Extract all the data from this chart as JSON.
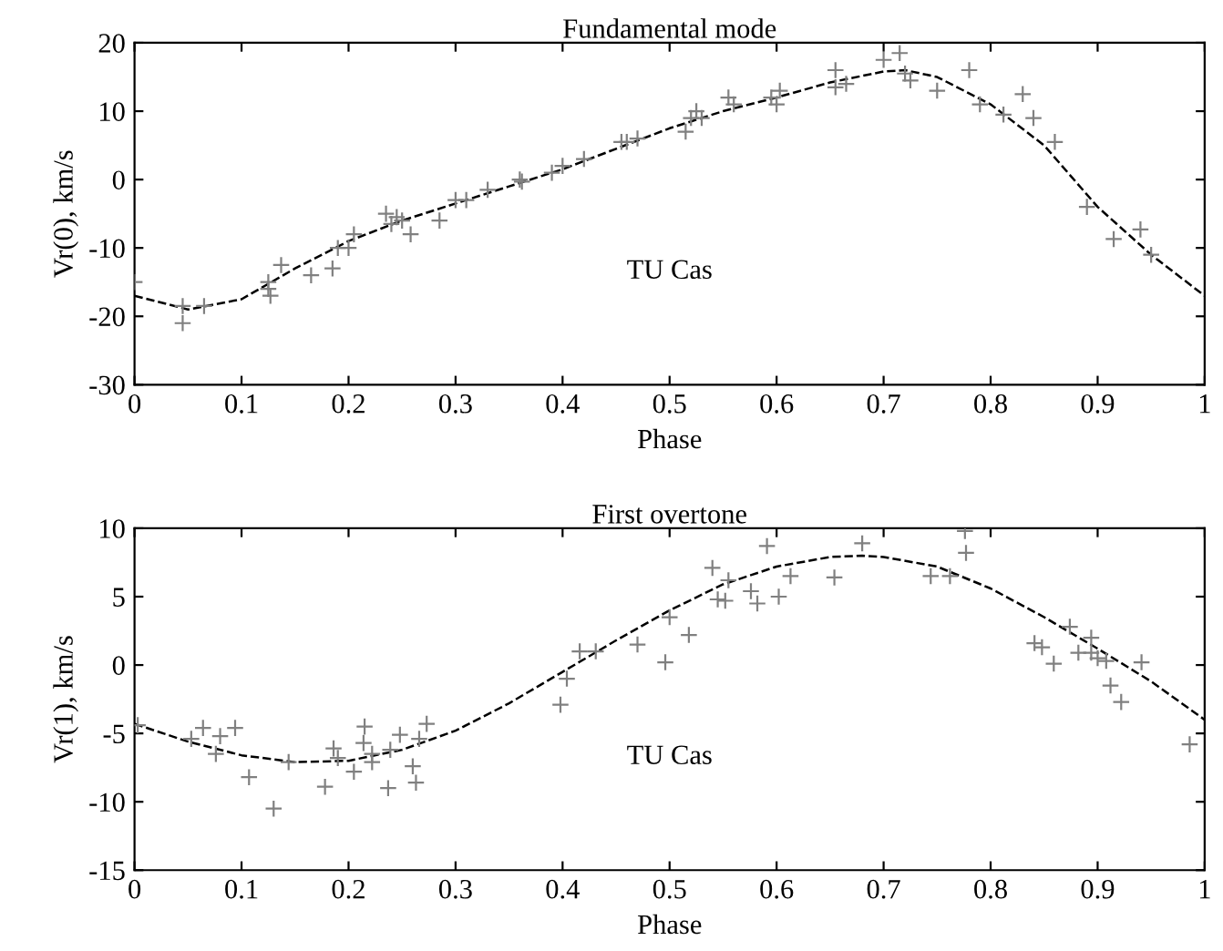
{
  "chart_data": [
    {
      "type": "scatter",
      "title": "Fundamental mode",
      "xlabel": "Phase",
      "ylabel": "Vr(0), km/s",
      "annotations": [
        "TU Cas"
      ],
      "xlim": [
        0,
        1
      ],
      "ylim": [
        -30,
        20
      ],
      "xticks": [
        0,
        0.1,
        0.2,
        0.3,
        0.4,
        0.5,
        0.6,
        0.7,
        0.8,
        0.9,
        1
      ],
      "yticks": [
        -30,
        -20,
        -10,
        0,
        10,
        20
      ],
      "grid": false,
      "legend": false,
      "series": [
        {
          "color": "#808080",
          "marker": "cross",
          "x": [
            0,
            0.045,
            0.045,
            0.065,
            0.125,
            0.125,
            0.127,
            0.137,
            0.165,
            0.185,
            0.19,
            0.2,
            0.205,
            0.235,
            0.24,
            0.245,
            0.25,
            0.258,
            0.285,
            0.3,
            0.31,
            0.33,
            0.36,
            0.362,
            0.39,
            0.4,
            0.42,
            0.455,
            0.46,
            0.47,
            0.515,
            0.52,
            0.525,
            0.53,
            0.555,
            0.56,
            0.595,
            0.6,
            0.603,
            0.655,
            0.655,
            0.665,
            0.7,
            0.715,
            0.72,
            0.725,
            0.75,
            0.78,
            0.79,
            0.812,
            0.83,
            0.84,
            0.86,
            0.89,
            0.915,
            0.94,
            0.95
          ],
          "values": [
            -15,
            -18.5,
            -21,
            -18.5,
            -15,
            -16,
            -17,
            -12.5,
            -14,
            -13,
            -10,
            -10,
            -8,
            -5,
            -6.5,
            -5.5,
            -6,
            -8,
            -6,
            -3,
            -3,
            -1.5,
            0,
            -0.3,
            1,
            2,
            3,
            5.5,
            5.5,
            6,
            7,
            9,
            10,
            9,
            12,
            11,
            12,
            11,
            13,
            16,
            13.5,
            14,
            17.5,
            18.5,
            15.5,
            14.5,
            13,
            16,
            11,
            9.5,
            12.5,
            9,
            5.5,
            -4,
            -8.7,
            -7.3,
            -11
          ]
        },
        {
          "type": "line",
          "color": "#000000",
          "line_style": "dashed",
          "marker": "none",
          "x": [
            0,
            0.05,
            0.1,
            0.15,
            0.2,
            0.25,
            0.3,
            0.35,
            0.4,
            0.45,
            0.5,
            0.55,
            0.6,
            0.65,
            0.7,
            0.72,
            0.75,
            0.8,
            0.85,
            0.9,
            0.95,
            1
          ],
          "values": [
            -17,
            -19,
            -17.5,
            -13,
            -9,
            -6,
            -3.5,
            -1,
            1.5,
            4.5,
            7.5,
            10,
            12,
            14.2,
            15.8,
            16,
            15,
            11,
            5,
            -4,
            -11,
            -17
          ]
        }
      ]
    },
    {
      "type": "scatter",
      "title": "First overtone",
      "xlabel": "Phase",
      "ylabel": "Vr(1), km/s",
      "annotations": [
        "TU Cas"
      ],
      "xlim": [
        0,
        1
      ],
      "ylim": [
        -15,
        10
      ],
      "xticks": [
        0,
        0.1,
        0.2,
        0.3,
        0.4,
        0.5,
        0.6,
        0.7,
        0.8,
        0.9,
        1
      ],
      "yticks": [
        -15,
        -10,
        -5,
        0,
        5,
        10
      ],
      "grid": false,
      "legend": false,
      "series": [
        {
          "color": "#808080",
          "marker": "cross",
          "x": [
            0.003,
            0.053,
            0.064,
            0.076,
            0.08,
            0.094,
            0.107,
            0.13,
            0.144,
            0.178,
            0.186,
            0.19,
            0.205,
            0.214,
            0.215,
            0.222,
            0.222,
            0.237,
            0.239,
            0.248,
            0.26,
            0.263,
            0.266,
            0.273,
            0.398,
            0.404,
            0.416,
            0.431,
            0.47,
            0.496,
            0.5,
            0.518,
            0.54,
            0.545,
            0.552,
            0.555,
            0.576,
            0.582,
            0.591,
            0.602,
            0.613,
            0.654,
            0.68,
            0.744,
            0.762,
            0.776,
            0.777,
            0.841,
            0.848,
            0.859,
            0.874,
            0.882,
            0.894,
            0.894,
            0.9,
            0.908,
            0.912,
            0.922,
            0.941,
            0.986
          ],
          "values": [
            -4.4,
            -5.4,
            -4.6,
            -6.5,
            -5.2,
            -4.6,
            -8.2,
            -10.5,
            -7.1,
            -8.9,
            -6.1,
            -6.8,
            -7.8,
            -5.7,
            -4.5,
            -6.5,
            -7.1,
            -9,
            -6.2,
            -5.1,
            -7.4,
            -8.6,
            -5.4,
            -4.3,
            -2.9,
            -1,
            1,
            1,
            1.5,
            0.2,
            3.5,
            2.2,
            7.1,
            4.8,
            4.7,
            6.2,
            5.4,
            4.5,
            8.7,
            5,
            6.5,
            6.4,
            8.9,
            6.5,
            6.5,
            9.8,
            8.2,
            1.6,
            1.3,
            0.1,
            2.8,
            0.9,
            2,
            0.9,
            0.5,
            0.3,
            -1.5,
            -2.7,
            0.2,
            -5.8
          ]
        },
        {
          "type": "line",
          "color": "#000000",
          "line_style": "dashed",
          "marker": "none",
          "x": [
            0,
            0.05,
            0.1,
            0.15,
            0.2,
            0.25,
            0.3,
            0.35,
            0.4,
            0.45,
            0.5,
            0.55,
            0.6,
            0.65,
            0.68,
            0.7,
            0.75,
            0.8,
            0.85,
            0.9,
            0.95,
            1
          ],
          "values": [
            -4.3,
            -5.6,
            -6.6,
            -7.1,
            -7,
            -6.2,
            -4.8,
            -2.8,
            -0.5,
            1.8,
            4,
            5.9,
            7.2,
            7.9,
            8,
            7.9,
            7.2,
            5.6,
            3.5,
            1.2,
            -1.2,
            -4
          ]
        }
      ]
    }
  ]
}
